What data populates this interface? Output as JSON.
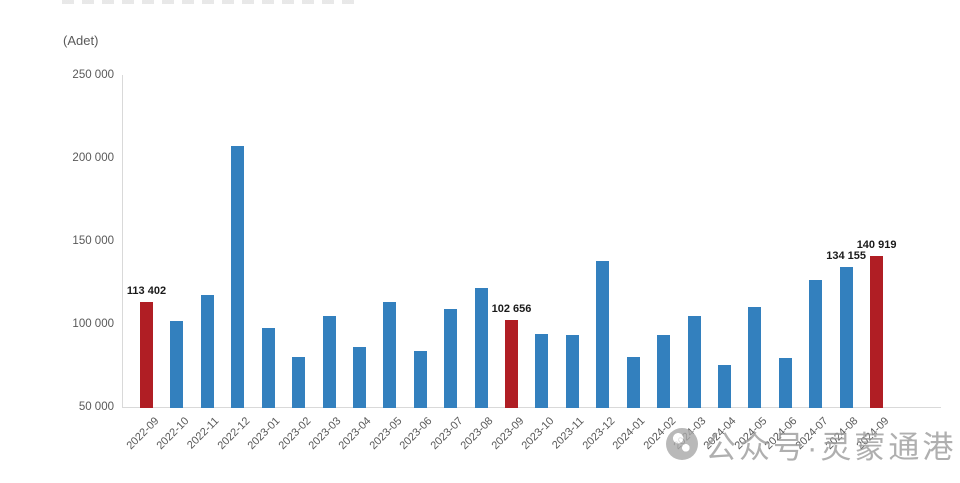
{
  "unit_label": "(Adet)",
  "watermark": {
    "text": "公众号·灵蒙通港",
    "icon": "wechat-official-account-icon"
  },
  "colors": {
    "bar_blue": "#3380be",
    "bar_red": "#b01e24",
    "axis_line": "#d9d9d9",
    "tick_text": "#595959",
    "data_label_text": "#1a1a1a",
    "watermark_gray": "#9c9c9c"
  },
  "chart_data": {
    "type": "bar",
    "title": "",
    "xlabel": "",
    "ylabel": "(Adet)",
    "grid": false,
    "legend": false,
    "ylim": [
      50000,
      250000
    ],
    "yticks": [
      {
        "label": "250 000",
        "value": 250000
      },
      {
        "label": "200 000",
        "value": 200000
      },
      {
        "label": "150 000",
        "value": 150000
      },
      {
        "label": "100 000",
        "value": 100000
      },
      {
        "label": "50 000",
        "value": 50000
      }
    ],
    "categories": [
      "2022-09",
      "2022-10",
      "2022-11",
      "2022-12",
      "2023-01",
      "2023-02",
      "2023-03",
      "2023-04",
      "2023-05",
      "2023-06",
      "2023-07",
      "2023-08",
      "2023-09",
      "2023-10",
      "2023-11",
      "2023-12",
      "2024-01",
      "2024-02",
      "2024-03",
      "2024-04",
      "2024-05",
      "2024-06",
      "2024-07",
      "2024-08",
      "2024-09"
    ],
    "values": [
      113402,
      102000,
      117500,
      207000,
      97500,
      80000,
      105000,
      86000,
      113000,
      84000,
      109000,
      121500,
      102656,
      94000,
      93500,
      138000,
      80000,
      93500,
      105000,
      75500,
      110000,
      79500,
      126500,
      134155,
      140919
    ],
    "highlighted_categories": [
      "2022-09",
      "2023-09",
      "2024-09"
    ],
    "data_labels": {
      "2022-09": "113 402",
      "2023-09": "102 656",
      "2024-08": "134 155",
      "2024-09": "140 919"
    }
  }
}
